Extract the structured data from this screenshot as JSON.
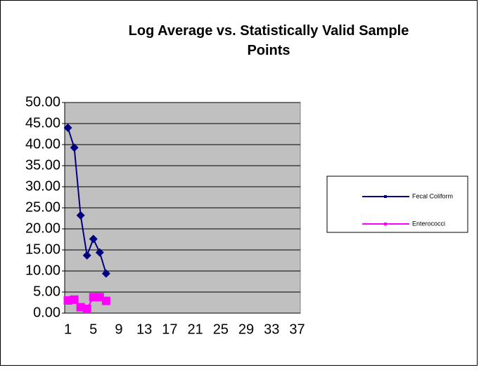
{
  "chart_data": {
    "type": "line",
    "title": "Log Average vs. Statistically Valid Sample Points",
    "categories": [
      "1",
      null,
      null,
      null,
      "5",
      null,
      null,
      null,
      "9",
      null,
      null,
      null,
      "13",
      null,
      null,
      null,
      "17",
      null,
      null,
      null,
      "21",
      null,
      null,
      null,
      "25",
      null,
      null,
      null,
      "29",
      null,
      null,
      null,
      "33",
      null,
      null,
      null,
      "37"
    ],
    "series": [
      {
        "name": "Fecal Coliform",
        "color": "#000080",
        "marker": "diamond",
        "values": [
          44,
          39.3,
          23.2,
          13.7,
          17.6,
          14.4,
          9.4,
          null,
          null,
          null,
          null,
          null,
          null,
          null,
          null,
          null,
          null,
          null,
          null,
          null,
          null,
          null,
          null,
          null,
          null,
          null,
          null,
          null,
          null,
          null,
          null,
          null,
          null,
          null,
          null,
          null,
          null
        ]
      },
      {
        "name": "Enterococci",
        "color": "#ff00ff",
        "marker": "square",
        "values": [
          3.0,
          3.2,
          1.4,
          1.0,
          3.8,
          3.8,
          2.9,
          null,
          null,
          null,
          null,
          null,
          null,
          null,
          null,
          null,
          null,
          null,
          null,
          null,
          null,
          null,
          null,
          null,
          null,
          null,
          null,
          null,
          null,
          null,
          null,
          null,
          null,
          null,
          null,
          null,
          null
        ]
      }
    ],
    "ylim": [
      0,
      50
    ],
    "yticks": [
      {
        "value": 0,
        "label": "0.00"
      },
      {
        "value": 5,
        "label": "5.00"
      },
      {
        "value": 10,
        "label": "10.00"
      },
      {
        "value": 15,
        "label": "15.00"
      },
      {
        "value": 20,
        "label": "20.00"
      },
      {
        "value": 25,
        "label": "25.00"
      },
      {
        "value": 30,
        "label": "30.00"
      },
      {
        "value": 35,
        "label": "35.00"
      },
      {
        "value": 40,
        "label": "40.00"
      },
      {
        "value": 45,
        "label": "45.00"
      },
      {
        "value": 50,
        "label": "50.00"
      }
    ],
    "grid": true,
    "plot_background": "#c0c0c0",
    "legend": "right"
  }
}
